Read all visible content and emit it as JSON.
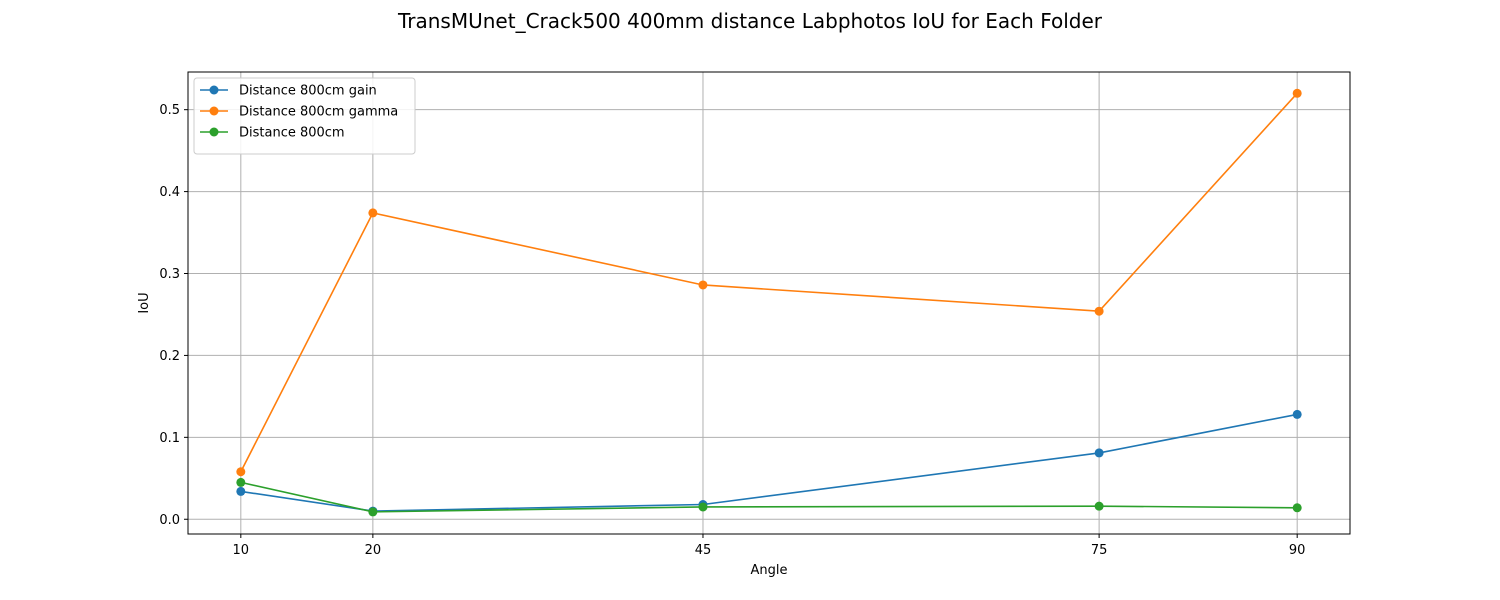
{
  "chart_data": {
    "type": "line",
    "title": "TransMUnet_Crack500 400mm distance Labphotos IoU for Each Folder",
    "xlabel": "Angle",
    "ylabel": "IoU",
    "x": [
      10,
      20,
      45,
      75,
      90
    ],
    "xlim": [
      6,
      94
    ],
    "ylim": [
      -0.018,
      0.546
    ],
    "yticks": [
      0.0,
      0.1,
      0.2,
      0.3,
      0.4,
      0.5
    ],
    "ytick_labels": [
      "0.0",
      "0.1",
      "0.2",
      "0.3",
      "0.4",
      "0.5"
    ],
    "xtick_labels": [
      "10",
      "20",
      "45",
      "75",
      "90"
    ],
    "grid": true,
    "legend_position": "top-left",
    "series": [
      {
        "name": "Distance 800cm gain",
        "color": "#1f77b4",
        "values": [
          0.034,
          0.01,
          0.018,
          0.081,
          0.128
        ]
      },
      {
        "name": "Distance 800cm gamma",
        "color": "#ff7f0e",
        "values": [
          0.058,
          0.374,
          0.286,
          0.254,
          0.52
        ]
      },
      {
        "name": "Distance 800cm",
        "color": "#2ca02c",
        "values": [
          0.045,
          0.009,
          0.015,
          0.016,
          0.014
        ]
      }
    ]
  }
}
